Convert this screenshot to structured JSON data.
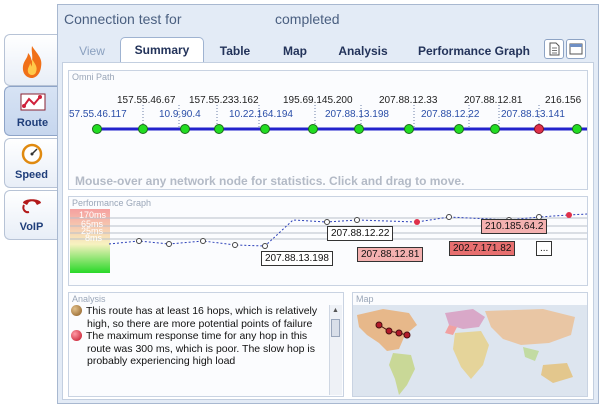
{
  "title": {
    "prefix": "Connection test for",
    "suffix": "completed"
  },
  "nav": [
    {
      "label": "",
      "icon": "flame-icon"
    },
    {
      "label": "Route",
      "icon": "route-icon"
    },
    {
      "label": "Speed",
      "icon": "speedometer-icon"
    },
    {
      "label": "VoIP",
      "icon": "phone-icon"
    }
  ],
  "tabs": [
    "View",
    "Summary",
    "Table",
    "Map",
    "Analysis",
    "Performance Graph"
  ],
  "active_tab": "Summary",
  "omni": {
    "header": "Omni Path",
    "top_ips": [
      "157.55.46.67",
      "157.55.233.162",
      "195.69.145.200",
      "207.88.12.33",
      "207.88.12.81",
      "216.156"
    ],
    "bottom_ips": [
      "57.55.46.117",
      "10.9.90.4",
      "10.22.164.194",
      "207.88.13.198",
      "207.88.12.22",
      "207.88.13.141"
    ],
    "message": "Mouse-over any network node for statistics. Click and drag to move."
  },
  "perf": {
    "header": "Performance Graph",
    "ms_labels": [
      "170ms",
      "65ms",
      "25ms",
      "8ms"
    ],
    "labels": [
      "207.88.12.22",
      "207.88.13.198",
      "207.88.12.81",
      "210.185.64.2",
      "202.7.171.82",
      "..."
    ]
  },
  "analysis": {
    "header": "Analysis",
    "paragraphs": [
      "This route has at least 16 hops, which is relatively high, so there are more potential points of failure",
      "The maximum response time for any hop in this route was 300 ms, which is poor. The slow hop is probably experiencing high load"
    ]
  },
  "map": {
    "header": "Map"
  },
  "colors": {
    "node_green": "#22dd22",
    "node_red": "#e0304a",
    "path_blue": "#2222cc"
  }
}
